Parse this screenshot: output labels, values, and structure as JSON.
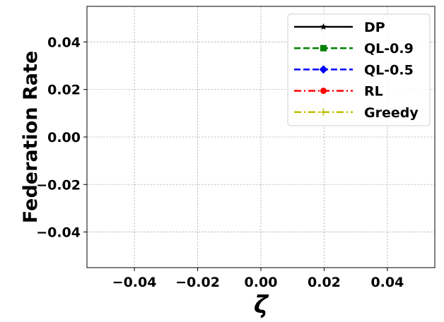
{
  "chart_data": {
    "type": "line",
    "xlabel": "ζ",
    "ylabel": "Federation Rate",
    "xlim": [
      -0.055,
      0.055
    ],
    "ylim": [
      -0.055,
      0.055
    ],
    "xticks": [
      -0.04,
      -0.02,
      0.0,
      0.02,
      0.04
    ],
    "yticks": [
      -0.04,
      -0.02,
      0.0,
      0.02,
      0.04
    ],
    "xtick_labels": [
      "−0.04",
      "−0.02",
      "0.00",
      "0.02",
      "0.04"
    ],
    "ytick_labels": [
      "−0.04",
      "−0.02",
      "0.00",
      "0.02",
      "0.04"
    ],
    "grid": true,
    "legend_position": "top-right",
    "series": [
      {
        "name": "DP",
        "color": "#000000",
        "dash": "solid",
        "marker": "star",
        "x": [],
        "y": []
      },
      {
        "name": "QL-0.9",
        "color": "#008000",
        "dash": "dashed",
        "marker": "square",
        "x": [],
        "y": []
      },
      {
        "name": "QL-0.5",
        "color": "#0000ff",
        "dash": "dashed",
        "marker": "diamond",
        "x": [],
        "y": []
      },
      {
        "name": "RL",
        "color": "#ff0000",
        "dash": "dashdot",
        "marker": "circle",
        "x": [],
        "y": []
      },
      {
        "name": "Greedy",
        "color": "#bfbf00",
        "dash": "dashdot",
        "marker": "plus",
        "x": [],
        "y": []
      }
    ]
  }
}
